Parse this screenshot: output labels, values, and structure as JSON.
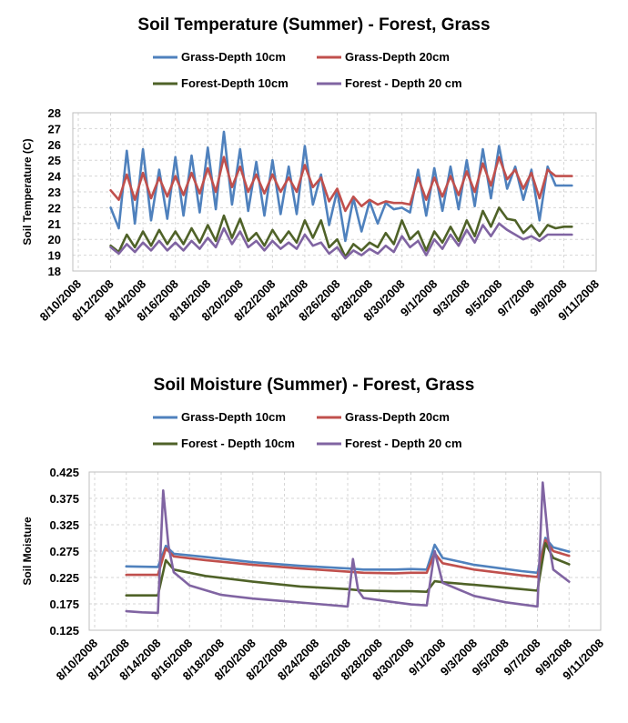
{
  "colors": {
    "grass_10": "#4f81bd",
    "grass_20": "#c0504d",
    "forest_10": "#4f6228",
    "forest_20": "#8064a2"
  },
  "chart_data": [
    {
      "type": "line",
      "title": "Soil Temperature (Summer) - Forest, Grass",
      "xlabel": "",
      "ylabel": "Soil Temperature (C)",
      "ylim": [
        18,
        28
      ],
      "yticks": [
        "28",
        "27",
        "26",
        "25",
        "24",
        "23",
        "22",
        "21",
        "20",
        "19",
        "18"
      ],
      "xticks": [
        "8/10/2008",
        "8/12/2008",
        "8/14/2008",
        "8/16/2008",
        "8/18/2008",
        "8/20/2008",
        "8/22/2008",
        "8/24/2008",
        "8/26/2008",
        "8/28/2008",
        "8/30/2008",
        "9/1/2008",
        "9/3/2008",
        "9/5/2008",
        "9/7/2008",
        "9/9/2008",
        "9/11/2008"
      ],
      "xrange": [
        "2008-08-10",
        "2008-09-11"
      ],
      "grid": true,
      "legend": "top",
      "series": [
        {
          "name": "Grass-Depth 10cm",
          "color_key": "grass_10",
          "x": [
            "2008-08-12",
            "2008-08-12",
            "2008-08-13",
            "2008-08-13",
            "2008-08-14",
            "2008-08-14",
            "2008-08-15",
            "2008-08-15",
            "2008-08-16",
            "2008-08-16",
            "2008-08-17",
            "2008-08-17",
            "2008-08-18",
            "2008-08-18",
            "2008-08-19",
            "2008-08-19",
            "2008-08-20",
            "2008-08-20",
            "2008-08-21",
            "2008-08-21",
            "2008-08-22",
            "2008-08-22",
            "2008-08-23",
            "2008-08-23",
            "2008-08-24",
            "2008-08-24",
            "2008-08-25",
            "2008-08-25",
            "2008-08-26",
            "2008-08-26",
            "2008-08-27",
            "2008-08-27",
            "2008-08-28",
            "2008-08-28",
            "2008-08-29",
            "2008-08-29",
            "2008-08-30",
            "2008-08-30",
            "2008-08-31",
            "2008-08-31",
            "2008-09-01",
            "2008-09-01",
            "2008-09-02",
            "2008-09-02",
            "2008-09-03",
            "2008-09-03",
            "2008-09-04",
            "2008-09-04",
            "2008-09-05",
            "2008-09-05",
            "2008-09-06",
            "2008-09-06",
            "2008-09-07",
            "2008-09-07",
            "2008-09-08",
            "2008-09-08",
            "2008-09-09",
            "2008-09-09"
          ],
          "y": [
            22.0,
            20.7,
            25.6,
            21.0,
            25.7,
            21.2,
            24.4,
            21.3,
            25.2,
            21.5,
            25.3,
            21.7,
            25.8,
            21.9,
            26.8,
            22.2,
            25.7,
            21.8,
            24.9,
            21.5,
            25.0,
            21.6,
            24.6,
            21.6,
            25.9,
            22.2,
            24.1,
            20.9,
            23.1,
            19.9,
            22.6,
            20.5,
            22.4,
            21.0,
            22.3,
            21.9,
            22.0,
            21.7,
            24.4,
            21.5,
            24.5,
            21.8,
            24.6,
            21.9,
            25.0,
            22.1,
            25.7,
            22.6,
            25.9,
            23.2,
            24.6,
            22.5,
            24.4,
            21.2,
            24.6,
            23.4,
            23.4,
            23.4
          ]
        },
        {
          "name": "Grass-Depth 20cm",
          "color_key": "grass_20",
          "x": [
            "2008-08-12",
            "2008-08-12",
            "2008-08-13",
            "2008-08-13",
            "2008-08-14",
            "2008-08-14",
            "2008-08-15",
            "2008-08-15",
            "2008-08-16",
            "2008-08-16",
            "2008-08-17",
            "2008-08-17",
            "2008-08-18",
            "2008-08-18",
            "2008-08-19",
            "2008-08-19",
            "2008-08-20",
            "2008-08-20",
            "2008-08-21",
            "2008-08-21",
            "2008-08-22",
            "2008-08-22",
            "2008-08-23",
            "2008-08-23",
            "2008-08-24",
            "2008-08-24",
            "2008-08-25",
            "2008-08-25",
            "2008-08-26",
            "2008-08-26",
            "2008-08-27",
            "2008-08-27",
            "2008-08-28",
            "2008-08-28",
            "2008-08-29",
            "2008-08-29",
            "2008-08-30",
            "2008-08-30",
            "2008-08-31",
            "2008-08-31",
            "2008-09-01",
            "2008-09-01",
            "2008-09-02",
            "2008-09-02",
            "2008-09-03",
            "2008-09-03",
            "2008-09-04",
            "2008-09-04",
            "2008-09-05",
            "2008-09-05",
            "2008-09-06",
            "2008-09-06",
            "2008-09-07",
            "2008-09-07",
            "2008-09-08",
            "2008-09-08",
            "2008-09-09",
            "2008-09-09"
          ],
          "y": [
            23.1,
            22.5,
            24.1,
            22.5,
            24.2,
            22.6,
            23.9,
            22.7,
            24.0,
            22.8,
            24.2,
            22.9,
            24.5,
            23.0,
            25.2,
            23.3,
            24.6,
            23.0,
            24.1,
            22.9,
            24.1,
            23.0,
            23.9,
            23.0,
            24.7,
            23.3,
            23.9,
            22.4,
            23.2,
            21.8,
            22.7,
            22.1,
            22.5,
            22.2,
            22.4,
            22.3,
            22.3,
            22.2,
            23.9,
            22.5,
            23.9,
            22.7,
            24.0,
            22.8,
            24.3,
            23.0,
            24.8,
            23.4,
            25.2,
            23.8,
            24.4,
            23.2,
            24.2,
            22.6,
            24.4,
            24.0,
            24.0,
            24.0
          ]
        },
        {
          "name": "Forest-Depth 10cm",
          "color_key": "forest_10",
          "x": [
            "2008-08-12",
            "2008-08-12",
            "2008-08-13",
            "2008-08-13",
            "2008-08-14",
            "2008-08-14",
            "2008-08-15",
            "2008-08-15",
            "2008-08-16",
            "2008-08-16",
            "2008-08-17",
            "2008-08-17",
            "2008-08-18",
            "2008-08-18",
            "2008-08-19",
            "2008-08-19",
            "2008-08-20",
            "2008-08-20",
            "2008-08-21",
            "2008-08-21",
            "2008-08-22",
            "2008-08-22",
            "2008-08-23",
            "2008-08-23",
            "2008-08-24",
            "2008-08-24",
            "2008-08-25",
            "2008-08-25",
            "2008-08-26",
            "2008-08-26",
            "2008-08-27",
            "2008-08-27",
            "2008-08-28",
            "2008-08-28",
            "2008-08-29",
            "2008-08-29",
            "2008-08-30",
            "2008-08-30",
            "2008-08-31",
            "2008-08-31",
            "2008-09-01",
            "2008-09-01",
            "2008-09-02",
            "2008-09-02",
            "2008-09-03",
            "2008-09-03",
            "2008-09-04",
            "2008-09-04",
            "2008-09-05",
            "2008-09-05",
            "2008-09-06",
            "2008-09-06",
            "2008-09-07",
            "2008-09-07",
            "2008-09-08",
            "2008-09-08",
            "2008-09-09",
            "2008-09-09"
          ],
          "y": [
            19.6,
            19.2,
            20.3,
            19.5,
            20.5,
            19.6,
            20.6,
            19.7,
            20.5,
            19.7,
            20.7,
            19.8,
            20.9,
            19.9,
            21.5,
            20.1,
            21.3,
            19.9,
            20.4,
            19.6,
            20.6,
            19.8,
            20.5,
            19.8,
            21.2,
            20.1,
            21.2,
            19.5,
            20.0,
            18.9,
            19.7,
            19.3,
            19.8,
            19.5,
            20.4,
            19.7,
            21.2,
            20.0,
            20.5,
            19.3,
            20.5,
            19.8,
            20.8,
            19.9,
            21.2,
            20.2,
            21.8,
            20.8,
            22.0,
            21.3,
            21.2,
            20.4,
            20.9,
            20.2,
            20.9,
            20.7,
            20.8,
            20.8
          ]
        },
        {
          "name": "Forest - Depth 20 cm",
          "color_key": "forest_20",
          "x": [
            "2008-08-12",
            "2008-08-12",
            "2008-08-13",
            "2008-08-13",
            "2008-08-14",
            "2008-08-14",
            "2008-08-15",
            "2008-08-15",
            "2008-08-16",
            "2008-08-16",
            "2008-08-17",
            "2008-08-17",
            "2008-08-18",
            "2008-08-18",
            "2008-08-19",
            "2008-08-19",
            "2008-08-20",
            "2008-08-20",
            "2008-08-21",
            "2008-08-21",
            "2008-08-22",
            "2008-08-22",
            "2008-08-23",
            "2008-08-23",
            "2008-08-24",
            "2008-08-24",
            "2008-08-25",
            "2008-08-25",
            "2008-08-26",
            "2008-08-26",
            "2008-08-27",
            "2008-08-27",
            "2008-08-28",
            "2008-08-28",
            "2008-08-29",
            "2008-08-29",
            "2008-08-30",
            "2008-08-30",
            "2008-08-31",
            "2008-08-31",
            "2008-09-01",
            "2008-09-01",
            "2008-09-02",
            "2008-09-02",
            "2008-09-03",
            "2008-09-03",
            "2008-09-04",
            "2008-09-04",
            "2008-09-05",
            "2008-09-05",
            "2008-09-06",
            "2008-09-06",
            "2008-09-07",
            "2008-09-07",
            "2008-09-08",
            "2008-09-08",
            "2008-09-09",
            "2008-09-09"
          ],
          "y": [
            19.5,
            19.1,
            19.7,
            19.2,
            19.8,
            19.3,
            19.9,
            19.3,
            19.8,
            19.3,
            19.9,
            19.4,
            20.1,
            19.5,
            20.7,
            19.7,
            20.5,
            19.5,
            19.9,
            19.3,
            19.9,
            19.4,
            19.8,
            19.4,
            20.3,
            19.6,
            19.8,
            19.1,
            19.5,
            18.8,
            19.3,
            19.0,
            19.4,
            19.1,
            19.6,
            19.2,
            20.2,
            19.5,
            19.9,
            19.0,
            20.0,
            19.4,
            20.3,
            19.6,
            20.6,
            19.8,
            20.9,
            20.2,
            21.0,
            20.6,
            20.3,
            20.0,
            20.2,
            19.9,
            20.3,
            20.3,
            20.3,
            20.3
          ]
        }
      ]
    },
    {
      "type": "line",
      "title": "Soil Moisture (Summer) - Forest, Grass",
      "xlabel": "",
      "ylabel": "Soil Moisture",
      "ylim": [
        0.125,
        0.425
      ],
      "yticks": [
        "0.425",
        "0.375",
        "0.325",
        "0.275",
        "0.225",
        "0.175",
        "0.125"
      ],
      "xticks": [
        "8/10/2008",
        "8/12/2008",
        "8/14/2008",
        "8/16/2008",
        "8/18/2008",
        "8/20/2008",
        "8/22/2008",
        "8/24/2008",
        "8/26/2008",
        "8/28/2008",
        "8/30/2008",
        "9/1/2008",
        "9/3/2008",
        "9/5/2008",
        "9/7/2008",
        "9/9/2008",
        "9/11/2008"
      ],
      "xrange": [
        "2008-08-10",
        "2008-09-11"
      ],
      "grid": true,
      "legend": "top",
      "series": [
        {
          "name": "Grass-Depth 10cm",
          "color_key": "grass_10",
          "x": [
            "2008-08-12",
            "2008-08-14",
            "2008-08-14",
            "2008-08-15",
            "2008-08-17",
            "2008-08-20",
            "2008-08-23",
            "2008-08-26",
            "2008-08-27",
            "2008-08-29",
            "2008-08-30",
            "2008-08-31",
            "2008-08-31",
            "2008-09-01",
            "2008-09-03",
            "2008-09-06",
            "2008-09-07",
            "2008-09-07",
            "2008-09-08",
            "2008-09-09"
          ],
          "y": [
            0.246,
            0.245,
            0.285,
            0.27,
            0.264,
            0.254,
            0.247,
            0.242,
            0.24,
            0.24,
            0.241,
            0.24,
            0.287,
            0.262,
            0.249,
            0.237,
            0.234,
            0.3,
            0.282,
            0.274
          ]
        },
        {
          "name": "Grass-Depth 20cm",
          "color_key": "grass_20",
          "x": [
            "2008-08-12",
            "2008-08-14",
            "2008-08-14",
            "2008-08-15",
            "2008-08-17",
            "2008-08-20",
            "2008-08-23",
            "2008-08-26",
            "2008-08-27",
            "2008-08-29",
            "2008-08-30",
            "2008-08-31",
            "2008-08-31",
            "2008-09-01",
            "2008-09-03",
            "2008-09-06",
            "2008-09-07",
            "2008-09-07",
            "2008-09-08",
            "2008-09-09"
          ],
          "y": [
            0.23,
            0.23,
            0.28,
            0.265,
            0.258,
            0.249,
            0.242,
            0.236,
            0.234,
            0.233,
            0.234,
            0.234,
            0.271,
            0.252,
            0.24,
            0.229,
            0.226,
            0.296,
            0.275,
            0.266
          ]
        },
        {
          "name": "Forest - Depth 10cm",
          "color_key": "forest_10",
          "x": [
            "2008-08-12",
            "2008-08-14",
            "2008-08-14",
            "2008-08-15",
            "2008-08-17",
            "2008-08-20",
            "2008-08-23",
            "2008-08-26",
            "2008-08-27",
            "2008-08-29",
            "2008-08-30",
            "2008-08-31",
            "2008-08-31",
            "2008-09-01",
            "2008-09-03",
            "2008-09-06",
            "2008-09-07",
            "2008-09-07",
            "2008-09-08",
            "2008-09-09"
          ],
          "y": [
            0.191,
            0.191,
            0.258,
            0.24,
            0.228,
            0.217,
            0.208,
            0.203,
            0.2,
            0.199,
            0.199,
            0.198,
            0.218,
            0.216,
            0.211,
            0.203,
            0.2,
            0.29,
            0.262,
            0.25
          ]
        },
        {
          "name": "Forest - Depth 20 cm",
          "color_key": "forest_20",
          "x": [
            "2008-08-12",
            "2008-08-13",
            "2008-08-14",
            "2008-08-14",
            "2008-08-14",
            "2008-08-15",
            "2008-08-16",
            "2008-08-18",
            "2008-08-20",
            "2008-08-22",
            "2008-08-24",
            "2008-08-26",
            "2008-08-26",
            "2008-08-26",
            "2008-08-27",
            "2008-08-29",
            "2008-08-30",
            "2008-08-31",
            "2008-08-31",
            "2008-09-01",
            "2008-09-03",
            "2008-09-05",
            "2008-09-07",
            "2008-09-07",
            "2008-09-07",
            "2008-09-08",
            "2008-09-09"
          ],
          "y": [
            0.161,
            0.159,
            0.158,
            0.39,
            0.285,
            0.235,
            0.21,
            0.192,
            0.185,
            0.18,
            0.175,
            0.17,
            0.26,
            0.2,
            0.186,
            0.178,
            0.174,
            0.172,
            0.275,
            0.215,
            0.19,
            0.178,
            0.17,
            0.405,
            0.3,
            0.24,
            0.217
          ]
        }
      ]
    }
  ]
}
